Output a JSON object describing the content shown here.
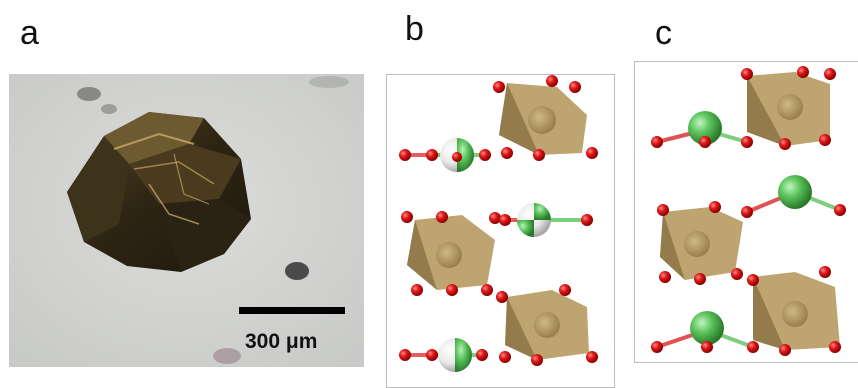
{
  "panels": {
    "a": {
      "letter": "a",
      "scale_bar_label": "300 μm"
    },
    "b": {
      "letter": "b"
    },
    "c": {
      "letter": "c"
    }
  },
  "colors": {
    "oxygen": "#d9141b",
    "ligand_green": "#5cc45c",
    "octahedron": "#a98e55",
    "crystal_bg": "#d5d6d3",
    "crystal_body": "#3a2f1c"
  },
  "icons": [
    "crystal-photo",
    "oxygen-atom",
    "octahedron-polyhedron",
    "green-atom"
  ]
}
